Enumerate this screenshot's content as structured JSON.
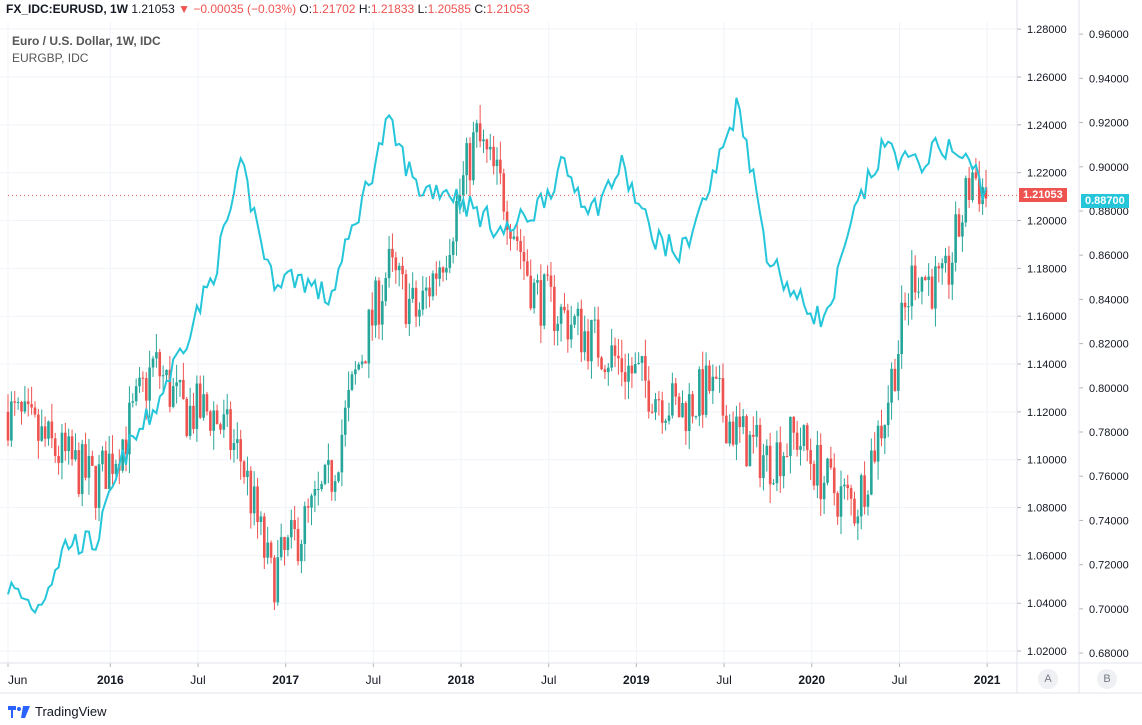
{
  "header": {
    "symbol": "FX_IDC:EURUSD, 1W",
    "last": "1.21053",
    "change": "−0.00035 (−0.03%)",
    "o_label": "O:",
    "o_value": "1.21702",
    "h_label": "H:",
    "h_value": "1.21833",
    "l_label": "L:",
    "l_value": "1.20585",
    "c_label": "C:",
    "c_value": "1.21053"
  },
  "legend": {
    "main": "Euro / U.S. Dollar, 1W, IDC",
    "overlay": "EURGBP, IDC"
  },
  "badges": {
    "eurusd": "1.21053",
    "eurgbp": "0.88700"
  },
  "scale_buttons": {
    "a": "A",
    "b": "B"
  },
  "footer": {
    "brand": "TradingView"
  },
  "colors": {
    "up": "#26a69a",
    "down": "#ef5350",
    "line": "#26c6da",
    "grid": "#f0f3fa"
  },
  "chart_data": {
    "type": "line",
    "x_tick_labels": [
      "Jun",
      "2016",
      "Jul",
      "2017",
      "Jul",
      "2018",
      "Jul",
      "2019",
      "Jul",
      "2020",
      "Jul",
      "2021"
    ],
    "y_left_ticks": [
      "1.28000",
      "1.26000",
      "1.24000",
      "1.22000",
      "1.20000",
      "1.18000",
      "1.16000",
      "1.14000",
      "1.12000",
      "1.10000",
      "1.08000",
      "1.06000",
      "1.04000",
      "1.02000"
    ],
    "y_right_ticks": [
      "0.96000",
      "0.94000",
      "0.92000",
      "0.90000",
      "0.88000",
      "0.86000",
      "0.84000",
      "0.82000",
      "0.80000",
      "0.78000",
      "0.76000",
      "0.74000",
      "0.72000",
      "0.70000",
      "0.68000"
    ],
    "y_left_range": [
      1.015,
      1.283
    ],
    "y_right_range": [
      0.6755,
      0.9655
    ],
    "grid": true,
    "series": [
      {
        "name": "EURUSD",
        "style": "candlestick",
        "close_by_time": [
          [
            "2015-06",
            1.12
          ],
          [
            "2015-08",
            1.11
          ],
          [
            "2015-10",
            1.1
          ],
          [
            "2015-12",
            1.09
          ],
          [
            "2016-02",
            1.11
          ],
          [
            "2016-04",
            1.14
          ],
          [
            "2016-06",
            1.12
          ],
          [
            "2016-08",
            1.12
          ],
          [
            "2016-10",
            1.1
          ],
          [
            "2016-12",
            1.05
          ],
          [
            "2017-02",
            1.07
          ],
          [
            "2017-04",
            1.09
          ],
          [
            "2017-06",
            1.14
          ],
          [
            "2017-08",
            1.18
          ],
          [
            "2017-10",
            1.16
          ],
          [
            "2017-12",
            1.19
          ],
          [
            "2018-02",
            1.235
          ],
          [
            "2018-04",
            1.21
          ],
          [
            "2018-06",
            1.17
          ],
          [
            "2018-08",
            1.16
          ],
          [
            "2018-10",
            1.15
          ],
          [
            "2018-12",
            1.14
          ],
          [
            "2019-02",
            1.13
          ],
          [
            "2019-04",
            1.12
          ],
          [
            "2019-06",
            1.13
          ],
          [
            "2019-08",
            1.11
          ],
          [
            "2019-10",
            1.1
          ],
          [
            "2019-12",
            1.11
          ],
          [
            "2020-02",
            1.09
          ],
          [
            "2020-04",
            1.08
          ],
          [
            "2020-06",
            1.12
          ],
          [
            "2020-08",
            1.18
          ],
          [
            "2020-10",
            1.17
          ],
          [
            "2020-12",
            1.22
          ],
          [
            "2021-01",
            1.21
          ]
        ]
      },
      {
        "name": "EURGBP",
        "style": "line",
        "close_by_time": [
          [
            "2015-06",
            0.71
          ],
          [
            "2015-08",
            0.7
          ],
          [
            "2015-10",
            0.73
          ],
          [
            "2015-12",
            0.73
          ],
          [
            "2016-02",
            0.77
          ],
          [
            "2016-04",
            0.79
          ],
          [
            "2016-06",
            0.82
          ],
          [
            "2016-08",
            0.85
          ],
          [
            "2016-10",
            0.9
          ],
          [
            "2016-12",
            0.85
          ],
          [
            "2017-02",
            0.85
          ],
          [
            "2017-04",
            0.84
          ],
          [
            "2017-06",
            0.88
          ],
          [
            "2017-08",
            0.92
          ],
          [
            "2017-10",
            0.89
          ],
          [
            "2017-12",
            0.89
          ],
          [
            "2018-02",
            0.88
          ],
          [
            "2018-04",
            0.87
          ],
          [
            "2018-06",
            0.88
          ],
          [
            "2018-08",
            0.9
          ],
          [
            "2018-10",
            0.88
          ],
          [
            "2018-12",
            0.9
          ],
          [
            "2019-02",
            0.87
          ],
          [
            "2019-04",
            0.86
          ],
          [
            "2019-06",
            0.89
          ],
          [
            "2019-08",
            0.93
          ],
          [
            "2019-10",
            0.86
          ],
          [
            "2019-12",
            0.84
          ],
          [
            "2020-02",
            0.83
          ],
          [
            "2020-04",
            0.88
          ],
          [
            "2020-06",
            0.91
          ],
          [
            "2020-08",
            0.9
          ],
          [
            "2020-10",
            0.91
          ],
          [
            "2020-12",
            0.9
          ],
          [
            "2021-01",
            0.887
          ]
        ]
      }
    ]
  }
}
